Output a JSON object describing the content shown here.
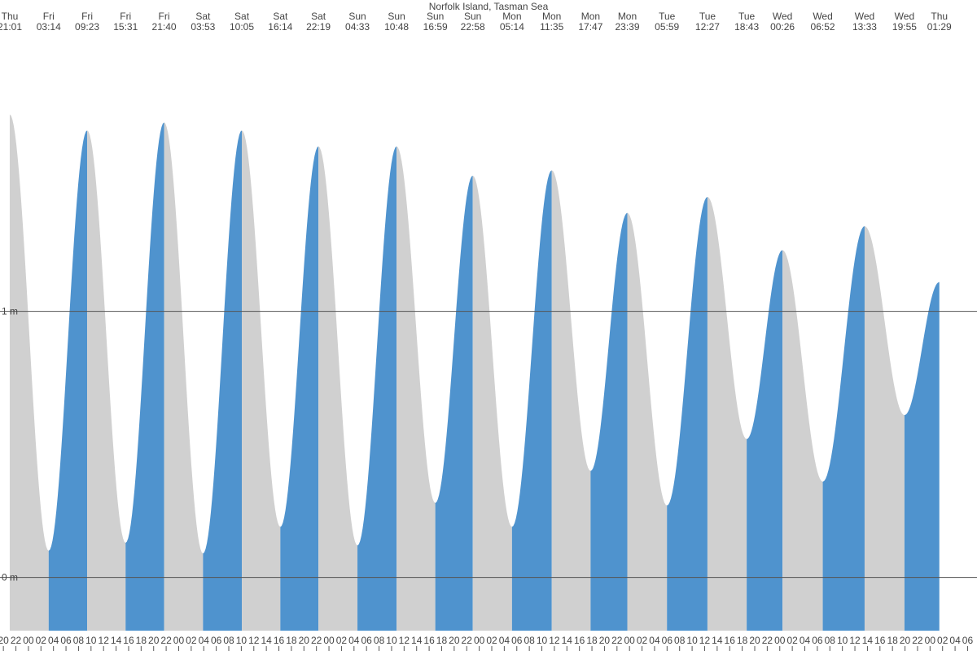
{
  "chart_data": {
    "type": "tide",
    "title": "Norfolk Island, Tasman Sea",
    "rising_color": "#4f93ce",
    "falling_color": "#d0d0d0",
    "grid": true,
    "ylim": [
      -0.2,
      2.17
    ],
    "yticks": [
      {
        "value": 0,
        "label": "0 m"
      },
      {
        "value": 1,
        "label": "1 m"
      }
    ],
    "xlim": [
      19.46,
      175.5
    ],
    "extremes": [
      {
        "day": "Thu",
        "time": "21:01",
        "height": 1.74
      },
      {
        "day": "Fri",
        "time": "03:14",
        "height": 0.1
      },
      {
        "day": "Fri",
        "time": "09:23",
        "height": 1.68
      },
      {
        "day": "Fri",
        "time": "15:31",
        "height": 0.13
      },
      {
        "day": "Fri",
        "time": "21:40",
        "height": 1.71
      },
      {
        "day": "Sat",
        "time": "03:53",
        "height": 0.09
      },
      {
        "day": "Sat",
        "time": "10:05",
        "height": 1.68
      },
      {
        "day": "Sat",
        "time": "16:14",
        "height": 0.19
      },
      {
        "day": "Sat",
        "time": "22:19",
        "height": 1.62
      },
      {
        "day": "Sun",
        "time": "04:33",
        "height": 0.12
      },
      {
        "day": "Sun",
        "time": "10:48",
        "height": 1.62
      },
      {
        "day": "Sun",
        "time": "16:59",
        "height": 0.28
      },
      {
        "day": "Sun",
        "time": "22:58",
        "height": 1.51
      },
      {
        "day": "Mon",
        "time": "05:14",
        "height": 0.19
      },
      {
        "day": "Mon",
        "time": "11:35",
        "height": 1.53
      },
      {
        "day": "Mon",
        "time": "17:47",
        "height": 0.4
      },
      {
        "day": "Mon",
        "time": "23:39",
        "height": 1.37
      },
      {
        "day": "Tue",
        "time": "05:59",
        "height": 0.27
      },
      {
        "day": "Tue",
        "time": "12:27",
        "height": 1.43
      },
      {
        "day": "Tue",
        "time": "18:43",
        "height": 0.52
      },
      {
        "day": "Wed",
        "time": "00:26",
        "height": 1.23
      },
      {
        "day": "Wed",
        "time": "06:52",
        "height": 0.36
      },
      {
        "day": "Wed",
        "time": "13:33",
        "height": 1.32
      },
      {
        "day": "Wed",
        "time": "19:55",
        "height": 0.61
      },
      {
        "day": "Thu",
        "time": "01:29",
        "height": 1.11
      }
    ],
    "xticks": [
      {
        "value": 20,
        "label": "20"
      },
      {
        "value": 22,
        "label": "22"
      },
      {
        "value": 24,
        "label": "00"
      },
      {
        "value": 26,
        "label": "02"
      },
      {
        "value": 28,
        "label": "04"
      },
      {
        "value": 30,
        "label": "06"
      },
      {
        "value": 32,
        "label": "08"
      },
      {
        "value": 34,
        "label": "10"
      },
      {
        "value": 36,
        "label": "12"
      },
      {
        "value": 38,
        "label": "14"
      },
      {
        "value": 40,
        "label": "16"
      },
      {
        "value": 42,
        "label": "18"
      },
      {
        "value": 44,
        "label": "20"
      },
      {
        "value": 46,
        "label": "22"
      },
      {
        "value": 48,
        "label": "00"
      },
      {
        "value": 50,
        "label": "02"
      },
      {
        "value": 52,
        "label": "04"
      },
      {
        "value": 54,
        "label": "06"
      },
      {
        "value": 56,
        "label": "08"
      },
      {
        "value": 58,
        "label": "10"
      },
      {
        "value": 60,
        "label": "12"
      },
      {
        "value": 62,
        "label": "14"
      },
      {
        "value": 64,
        "label": "16"
      },
      {
        "value": 66,
        "label": "18"
      },
      {
        "value": 68,
        "label": "20"
      },
      {
        "value": 70,
        "label": "22"
      },
      {
        "value": 72,
        "label": "00"
      },
      {
        "value": 74,
        "label": "02"
      },
      {
        "value": 76,
        "label": "04"
      },
      {
        "value": 78,
        "label": "06"
      },
      {
        "value": 80,
        "label": "08"
      },
      {
        "value": 82,
        "label": "10"
      },
      {
        "value": 84,
        "label": "12"
      },
      {
        "value": 86,
        "label": "14"
      },
      {
        "value": 88,
        "label": "16"
      },
      {
        "value": 90,
        "label": "18"
      },
      {
        "value": 92,
        "label": "20"
      },
      {
        "value": 94,
        "label": "22"
      },
      {
        "value": 96,
        "label": "00"
      },
      {
        "value": 98,
        "label": "02"
      },
      {
        "value": 100,
        "label": "04"
      },
      {
        "value": 102,
        "label": "06"
      },
      {
        "value": 104,
        "label": "08"
      },
      {
        "value": 106,
        "label": "10"
      },
      {
        "value": 108,
        "label": "12"
      },
      {
        "value": 110,
        "label": "14"
      },
      {
        "value": 112,
        "label": "16"
      },
      {
        "value": 114,
        "label": "18"
      },
      {
        "value": 116,
        "label": "20"
      },
      {
        "value": 118,
        "label": "22"
      },
      {
        "value": 120,
        "label": "00"
      },
      {
        "value": 122,
        "label": "02"
      },
      {
        "value": 124,
        "label": "04"
      },
      {
        "value": 126,
        "label": "06"
      },
      {
        "value": 128,
        "label": "08"
      },
      {
        "value": 130,
        "label": "10"
      },
      {
        "value": 132,
        "label": "12"
      },
      {
        "value": 134,
        "label": "14"
      },
      {
        "value": 136,
        "label": "16"
      },
      {
        "value": 138,
        "label": "18"
      },
      {
        "value": 140,
        "label": "20"
      },
      {
        "value": 142,
        "label": "22"
      },
      {
        "value": 144,
        "label": "00"
      },
      {
        "value": 146,
        "label": "02"
      },
      {
        "value": 148,
        "label": "04"
      },
      {
        "value": 150,
        "label": "06"
      },
      {
        "value": 152,
        "label": "08"
      },
      {
        "value": 154,
        "label": "10"
      },
      {
        "value": 156,
        "label": "12"
      },
      {
        "value": 158,
        "label": "14"
      },
      {
        "value": 160,
        "label": "16"
      },
      {
        "value": 162,
        "label": "18"
      },
      {
        "value": 164,
        "label": "20"
      },
      {
        "value": 166,
        "label": "22"
      },
      {
        "value": 168,
        "label": "00"
      },
      {
        "value": 170,
        "label": "02"
      },
      {
        "value": 172,
        "label": "04"
      },
      {
        "value": 174,
        "label": "06"
      }
    ]
  }
}
